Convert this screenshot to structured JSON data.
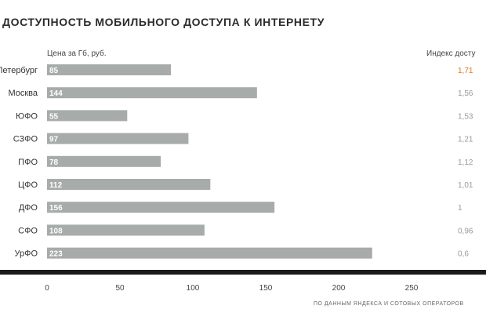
{
  "title": "ДОСТУПНОСТЬ МОБИЛЬНОГО ДОСТУПА К ИНТЕРНЕТУ",
  "price_header": "Цена за Гб, руб.",
  "index_header": "Индекс досту",
  "source": "ПО ДАННЫМ ЯНДЕКСА И СОТОВЫХ ОПЕРАТОРОВ",
  "colors": {
    "bar": "#a7abaa",
    "bar_label": "#ffffff",
    "highlight": "#e07a1f",
    "index": "#9a9a9a",
    "axis": "#1a1a1a"
  },
  "chart_data": {
    "type": "bar",
    "orientation": "horizontal",
    "categories": [
      "Петербург",
      "Москва",
      "ЮФО",
      "СЗФО",
      "ПФО",
      "ЦФО",
      "ДФО",
      "СФО",
      "УрФО"
    ],
    "values": [
      85,
      144,
      55,
      97,
      78,
      112,
      156,
      108,
      223
    ],
    "index_values": [
      "1,71",
      "1,56",
      "1,53",
      "1,21",
      "1,12",
      "1,01",
      "1",
      "0,96",
      "0,6"
    ],
    "highlight_index": 0,
    "xlim": [
      0,
      300
    ],
    "xticks": [
      0,
      50,
      100,
      150,
      200,
      250
    ],
    "xlabel": "Цена за Гб, руб.",
    "grid": false
  }
}
